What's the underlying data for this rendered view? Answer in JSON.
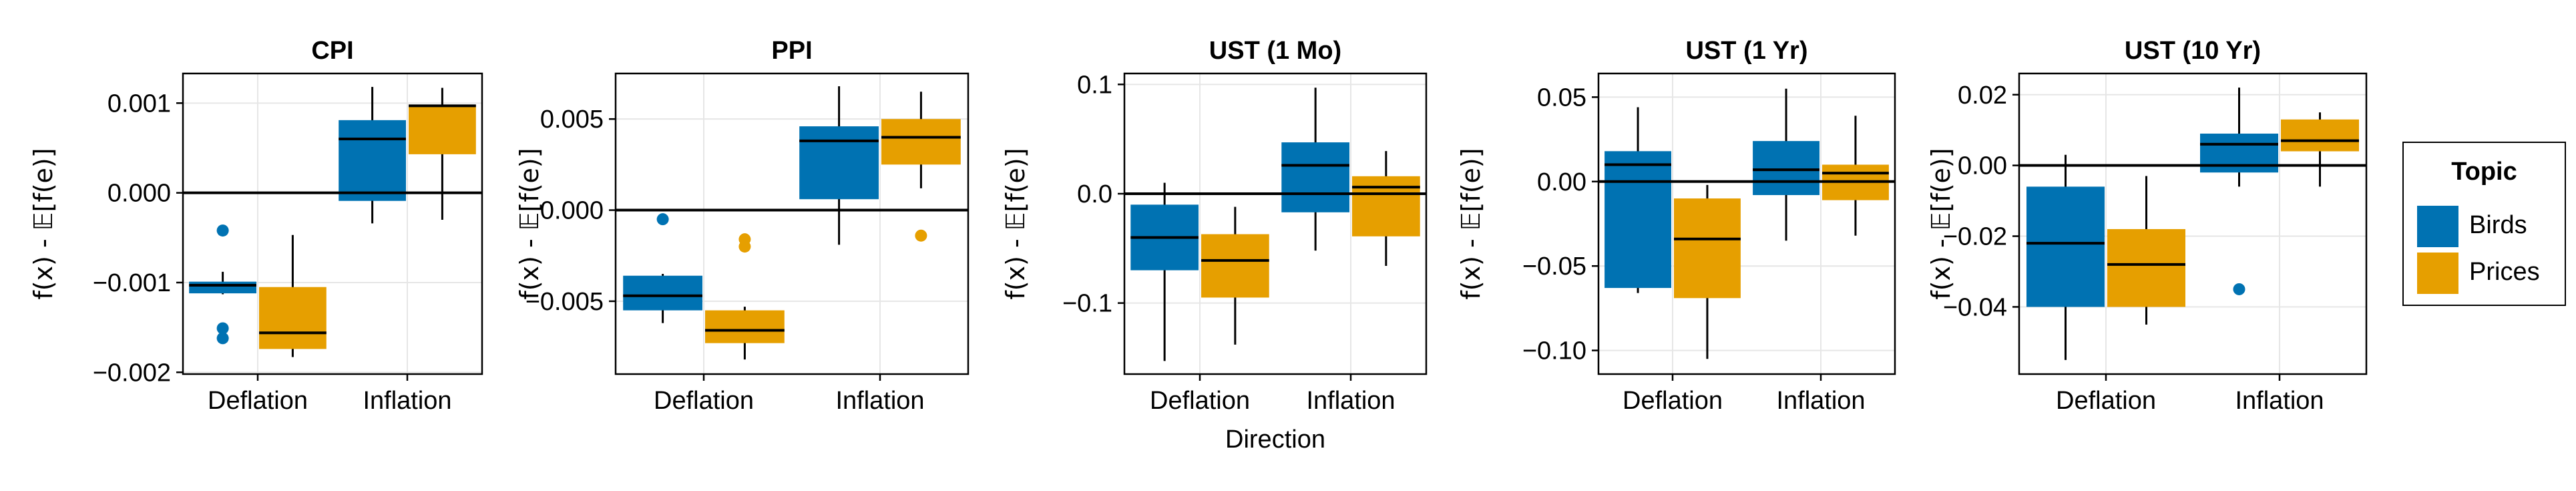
{
  "colors": {
    "birds": "#0072b2",
    "prices": "#e69f00",
    "median": "#000000",
    "grid": "#e6e6e6",
    "axis": "#000000"
  },
  "legend": {
    "title": "Topic",
    "entries": [
      {
        "label": "Birds",
        "color": "#0072b2"
      },
      {
        "label": "Prices",
        "color": "#e69f00"
      }
    ]
  },
  "chart_data": [
    {
      "type": "box",
      "title": "CPI",
      "xlabel": "",
      "ylabel": "f(x) - 𝔼[f(e)]",
      "categories": [
        "Deflation",
        "Inflation"
      ],
      "ylim": [
        -0.00202,
        0.00133
      ],
      "yticks": [
        -0.002,
        -0.001,
        0.0,
        0.001
      ],
      "yticklabels": [
        "−0.002",
        "−0.001",
        "0.000",
        "0.001"
      ],
      "hline": 0,
      "series": [
        {
          "name": "Birds",
          "boxes": [
            {
              "category": "Deflation",
              "whisker_low": -0.00113,
              "q1": -0.00112,
              "median": -0.00103,
              "q3": -0.00099,
              "whisker_high": -0.00088,
              "outliers": [
                -0.00042,
                -0.00151,
                -0.00162
              ]
            },
            {
              "category": "Inflation",
              "whisker_low": -0.00034,
              "q1": -9e-05,
              "median": 0.0006,
              "q3": 0.00081,
              "whisker_high": 0.00118,
              "outliers": []
            }
          ]
        },
        {
          "name": "Prices",
          "boxes": [
            {
              "category": "Deflation",
              "whisker_low": -0.00183,
              "q1": -0.00174,
              "median": -0.00156,
              "q3": -0.00105,
              "whisker_high": -0.00047,
              "outliers": []
            },
            {
              "category": "Inflation",
              "whisker_low": -0.0003,
              "q1": 0.00043,
              "median": 0.00097,
              "q3": 0.00098,
              "whisker_high": 0.00117,
              "outliers": []
            }
          ]
        }
      ]
    },
    {
      "type": "box",
      "title": "PPI",
      "xlabel": "",
      "ylabel": "f(x) - 𝔼[f(e)]",
      "categories": [
        "Deflation",
        "Inflation"
      ],
      "ylim": [
        -0.009,
        0.0075
      ],
      "yticks": [
        -0.005,
        0.0,
        0.005
      ],
      "yticklabels": [
        "−0.005",
        "0.000",
        "0.005"
      ],
      "hline": 0,
      "series": [
        {
          "name": "Birds",
          "boxes": [
            {
              "category": "Deflation",
              "whisker_low": -0.0062,
              "q1": -0.0055,
              "median": -0.0047,
              "q3": -0.0036,
              "whisker_high": -0.0035,
              "outliers": [
                -0.0005
              ]
            },
            {
              "category": "Inflation",
              "whisker_low": -0.0019,
              "q1": 0.0006,
              "median": 0.0038,
              "q3": 0.0046,
              "whisker_high": 0.0068,
              "outliers": []
            }
          ]
        },
        {
          "name": "Prices",
          "boxes": [
            {
              "category": "Deflation",
              "whisker_low": -0.0082,
              "q1": -0.0073,
              "median": -0.0066,
              "q3": -0.0055,
              "whisker_high": -0.0053,
              "outliers": [
                -0.0016,
                -0.002
              ]
            },
            {
              "category": "Inflation",
              "whisker_low": 0.0012,
              "q1": 0.0025,
              "median": 0.004,
              "q3": 0.005,
              "whisker_high": 0.0065,
              "outliers": [
                -0.0014
              ]
            }
          ]
        }
      ]
    },
    {
      "type": "box",
      "title": "UST (1 Mo)",
      "xlabel": "Direction",
      "ylabel": "f(x) - 𝔼[f(e)]",
      "categories": [
        "Deflation",
        "Inflation"
      ],
      "ylim": [
        -0.165,
        0.11
      ],
      "yticks": [
        -0.1,
        0.0,
        0.1
      ],
      "yticklabels": [
        "−0.1",
        "0.0",
        "0.1"
      ],
      "hline": 0,
      "series": [
        {
          "name": "Birds",
          "boxes": [
            {
              "category": "Deflation",
              "whisker_low": -0.153,
              "q1": -0.07,
              "median": -0.04,
              "q3": -0.01,
              "whisker_high": 0.01,
              "outliers": []
            },
            {
              "category": "Inflation",
              "whisker_low": -0.052,
              "q1": -0.017,
              "median": 0.026,
              "q3": 0.047,
              "whisker_high": 0.097,
              "outliers": []
            }
          ]
        },
        {
          "name": "Prices",
          "boxes": [
            {
              "category": "Deflation",
              "whisker_low": -0.138,
              "q1": -0.095,
              "median": -0.061,
              "q3": -0.037,
              "whisker_high": -0.012,
              "outliers": []
            },
            {
              "category": "Inflation",
              "whisker_low": -0.066,
              "q1": -0.039,
              "median": 0.006,
              "q3": 0.016,
              "whisker_high": 0.039,
              "outliers": []
            }
          ]
        }
      ]
    },
    {
      "type": "box",
      "title": "UST (1 Yr)",
      "xlabel": "",
      "ylabel": "f(x) - 𝔼[f(e)]",
      "categories": [
        "Deflation",
        "Inflation"
      ],
      "ylim": [
        -0.114,
        0.064
      ],
      "yticks": [
        -0.1,
        -0.05,
        0.0,
        0.05
      ],
      "yticklabels": [
        "−0.10",
        "−0.05",
        "0.00",
        "0.05"
      ],
      "hline": 0,
      "series": [
        {
          "name": "Birds",
          "boxes": [
            {
              "category": "Deflation",
              "whisker_low": -0.066,
              "q1": -0.063,
              "median": 0.01,
              "q3": 0.018,
              "whisker_high": 0.044,
              "outliers": []
            },
            {
              "category": "Inflation",
              "whisker_low": -0.035,
              "q1": -0.008,
              "median": 0.007,
              "q3": 0.024,
              "whisker_high": 0.055,
              "outliers": []
            }
          ]
        },
        {
          "name": "Prices",
          "boxes": [
            {
              "category": "Deflation",
              "whisker_low": -0.105,
              "q1": -0.069,
              "median": -0.034,
              "q3": -0.01,
              "whisker_high": -0.002,
              "outliers": []
            },
            {
              "category": "Inflation",
              "whisker_low": -0.032,
              "q1": -0.011,
              "median": 0.005,
              "q3": 0.01,
              "whisker_high": 0.039,
              "outliers": []
            }
          ]
        }
      ]
    },
    {
      "type": "box",
      "title": "UST (10 Yr)",
      "xlabel": "",
      "ylabel": "f(x) - 𝔼[f(e)]",
      "categories": [
        "Deflation",
        "Inflation"
      ],
      "ylim": [
        -0.059,
        0.026
      ],
      "yticks": [
        -0.04,
        -0.02,
        0.0,
        0.02
      ],
      "yticklabels": [
        "−0.04",
        "−0.02",
        "0.00",
        "0.02"
      ],
      "hline": 0,
      "series": [
        {
          "name": "Birds",
          "boxes": [
            {
              "category": "Deflation",
              "whisker_low": -0.055,
              "q1": -0.04,
              "median": -0.022,
              "q3": -0.006,
              "whisker_high": 0.003,
              "outliers": []
            },
            {
              "category": "Inflation",
              "whisker_low": -0.006,
              "q1": -0.002,
              "median": 0.006,
              "q3": 0.009,
              "whisker_high": 0.022,
              "outliers": [
                -0.035
              ]
            }
          ]
        },
        {
          "name": "Prices",
          "boxes": [
            {
              "category": "Deflation",
              "whisker_low": -0.045,
              "q1": -0.04,
              "median": -0.028,
              "q3": -0.018,
              "whisker_high": -0.003,
              "outliers": []
            },
            {
              "category": "Inflation",
              "whisker_low": -0.006,
              "q1": 0.004,
              "median": 0.007,
              "q3": 0.013,
              "whisker_high": 0.015,
              "outliers": []
            }
          ]
        }
      ]
    }
  ]
}
